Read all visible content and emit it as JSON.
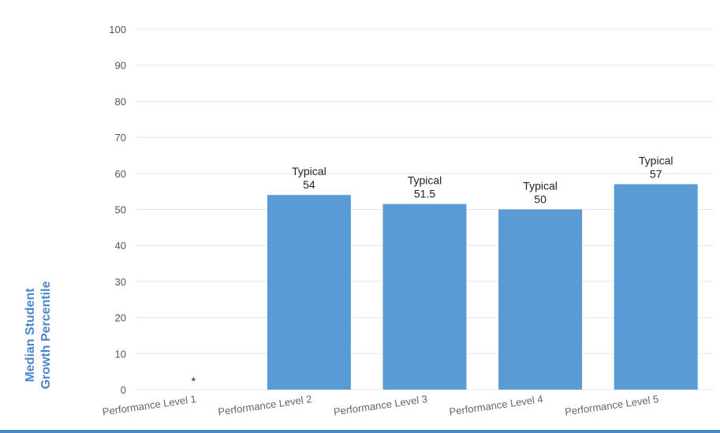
{
  "colors": {
    "bar": "#5b9bd5",
    "accent": "#4a86c8",
    "bottom_rule": "#4a86c8"
  },
  "chart_data": {
    "type": "bar",
    "ylabel_lines": [
      "Median Student",
      "Growth Percentile"
    ],
    "ylim": [
      0,
      100
    ],
    "yticks": [
      0,
      10,
      20,
      30,
      40,
      50,
      60,
      70,
      80,
      90,
      100
    ],
    "grid": true,
    "categories": [
      "Performance Level 1",
      "Performance Level 2",
      "Performance Level 3",
      "Performance Level 4",
      "Performance Level 5"
    ],
    "values": [
      null,
      54,
      51.5,
      50,
      57
    ],
    "value_labels": [
      "",
      "54",
      "51.5",
      "50",
      "57"
    ],
    "descriptor_labels": [
      "",
      "Typical",
      "Typical",
      "Typical",
      "Typical"
    ],
    "missing_marker": "*"
  }
}
